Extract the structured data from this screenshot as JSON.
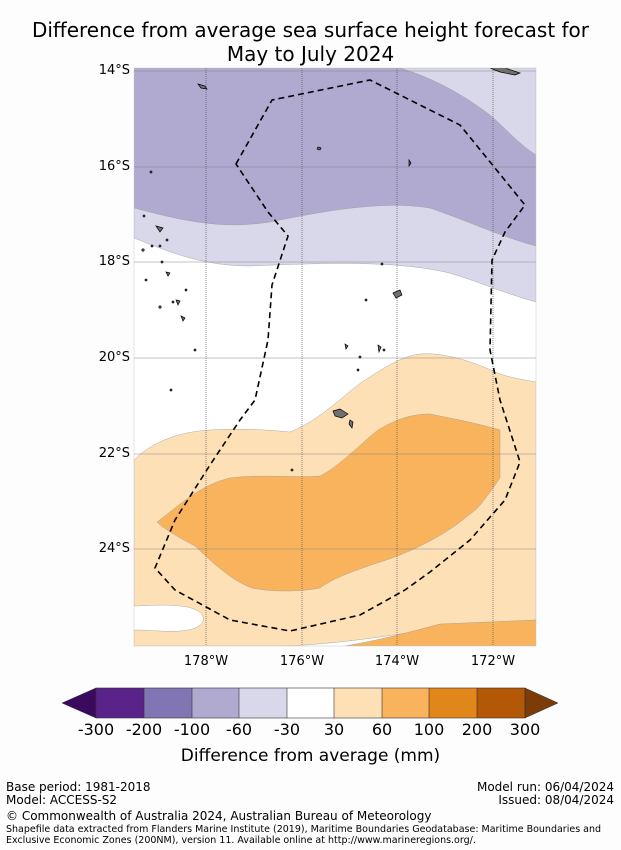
{
  "title": {
    "line1": "Difference from average sea surface height forecast for",
    "line2": "May to July 2024"
  },
  "map": {
    "lat_labels": [
      "14°S",
      "16°S",
      "18°S",
      "20°S",
      "22°S",
      "24°S"
    ],
    "lon_labels": [
      "178°W",
      "176°W",
      "174°W",
      "172°W"
    ],
    "contour_colors": {
      "minus_100_to_minus_60": "#b0a9d0",
      "minus_60_to_minus_30": "#d8d8ea",
      "minus_30_to_30": "#ffffff",
      "30_to_60": "#fde0b6",
      "60_to_100": "#f9b35d",
      "land": "#707070",
      "eez_boundary": "#000000"
    }
  },
  "colorbar": {
    "ticks": [
      "-300",
      "-200",
      "-100",
      "-60",
      "-30",
      "30",
      "60",
      "100",
      "200",
      "300"
    ],
    "colors": [
      "#3b0a5e",
      "#5a2389",
      "#8175b3",
      "#b0a9d0",
      "#d8d8ea",
      "#ffffff",
      "#fde0b6",
      "#f9b35d",
      "#e0861b",
      "#b35806",
      "#7c3c07"
    ],
    "label": "Difference from average (mm)"
  },
  "footer": {
    "base_period": "Base period: 1981-2018",
    "model": "Model: ACCESS-S2",
    "model_run": "Model run: 06/04/2024",
    "issued": "Issued: 08/04/2024",
    "copyright": "© Commonwealth of Australia 2024, Australian Bureau of Meteorology",
    "source_line1": "Shapefile data extracted from Flanders Marine Institute (2019), Maritime Boundaries Geodatabase: Maritime Boundaries and",
    "source_line2": "Exclusive Economic Zones (200NM), version 11. Available online at http://www.marineregions.org/."
  }
}
